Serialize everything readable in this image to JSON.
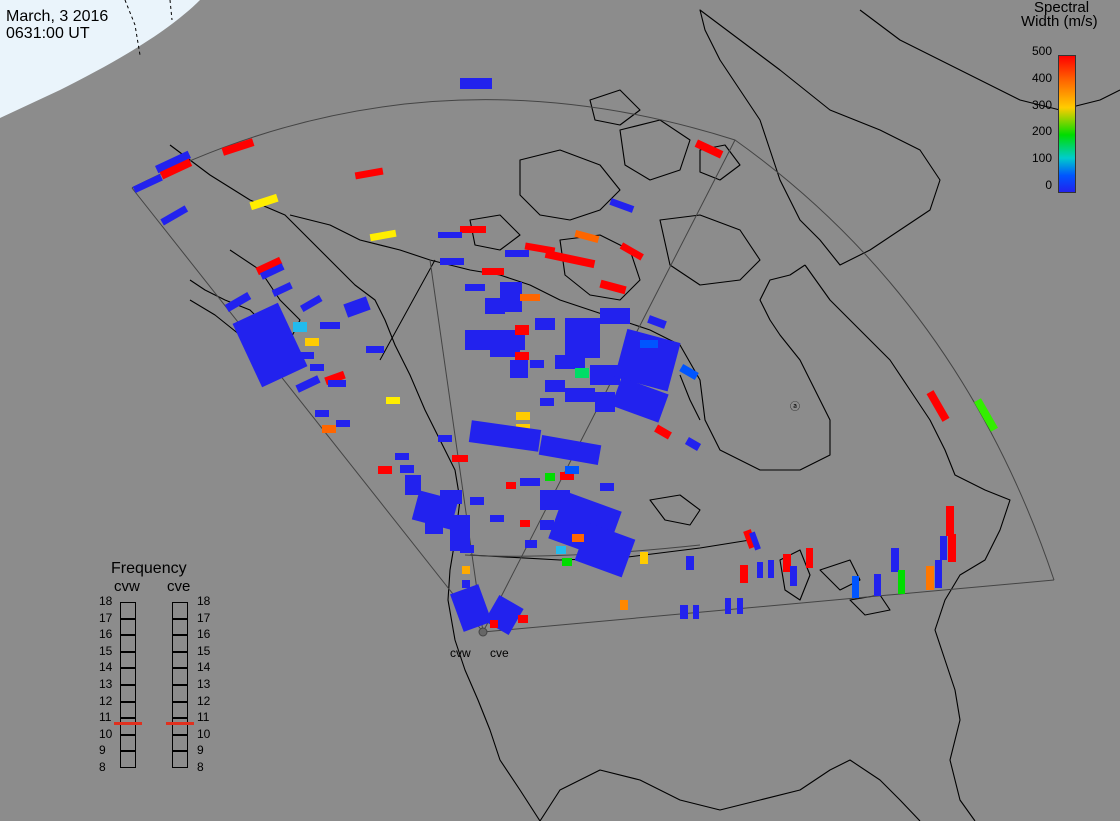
{
  "header": {
    "date": "March, 3 2016",
    "time": "0631:00 UT"
  },
  "colorbar": {
    "title_line1": "Spectral",
    "title_line2": "Width (m/s)",
    "ticks": [
      "500",
      "400",
      "300",
      "200",
      "100",
      "0"
    ],
    "min": 0,
    "max": 500,
    "colors": [
      "#ff0000",
      "#ff6600",
      "#ffcc00",
      "#00dd00",
      "#00cccc",
      "#0055ff",
      "#2222ee"
    ]
  },
  "frequency_panel": {
    "title": "Frequency",
    "radars": [
      {
        "name": "cvw",
        "current_mhz": 10.7
      },
      {
        "name": "cve",
        "current_mhz": 10.7
      }
    ],
    "scale": [
      "18",
      "17",
      "16",
      "15",
      "14",
      "13",
      "12",
      "11",
      "10",
      "9",
      "8"
    ],
    "marker_color": "#e0301e"
  },
  "radar_sites": {
    "west_label": "cvw",
    "east_label": "cve"
  },
  "colors": {
    "background": "#8c8c8c",
    "land_outline": "#000000",
    "daylight": "#eaf4fb",
    "low_width": "#2222ee",
    "high_width": "#ff0000"
  }
}
